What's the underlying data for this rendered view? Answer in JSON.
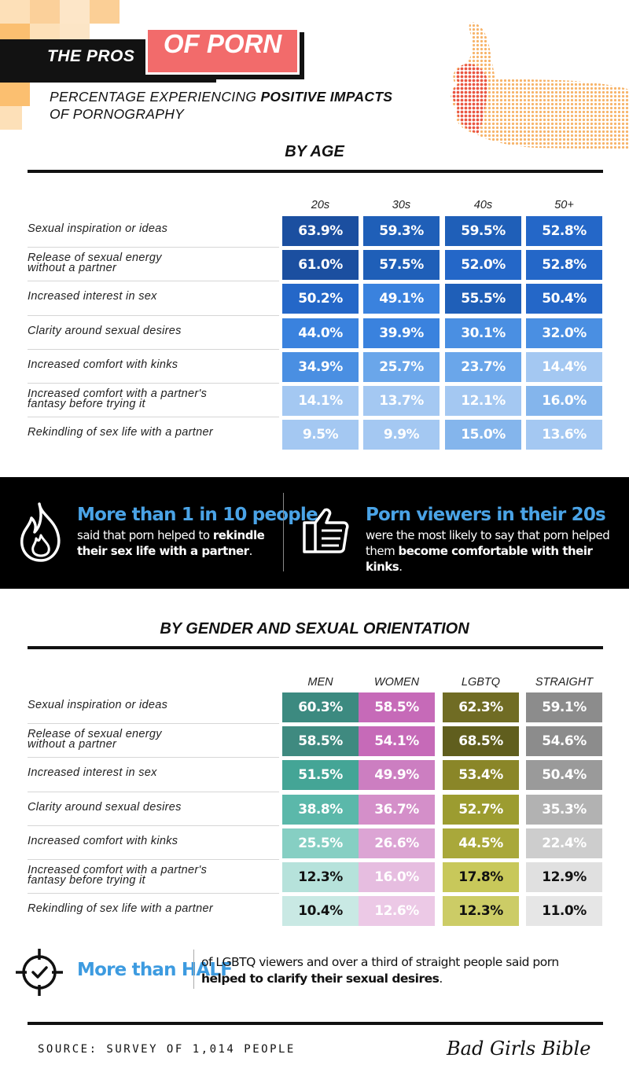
{
  "header": {
    "title_part1": "THE PROS",
    "title_part2": "OF PORN",
    "subtitle_line1_plain": "PERCENTAGE EXPERIENCING ",
    "subtitle_line1_bold": "POSITIVE IMPACTS",
    "subtitle_line2": "OF PORNOGRAPHY"
  },
  "row_labels": [
    [
      "Sexual inspiration or ideas"
    ],
    [
      "Release of sexual energy",
      "without a partner"
    ],
    [
      "Increased interest in sex"
    ],
    [
      "Clarity around sexual desires"
    ],
    [
      "Increased comfort with kinks"
    ],
    [
      "Increased comfort with a partner's",
      "fantasy before trying it"
    ],
    [
      "Rekindling of sex life with a partner"
    ]
  ],
  "chart_data": [
    {
      "type": "table",
      "title": "BY AGE",
      "categories": [
        "Sexual inspiration or ideas",
        "Release of sexual energy without a partner",
        "Increased interest in sex",
        "Clarity around sexual desires",
        "Increased comfort with kinks",
        "Increased comfort with a partner's fantasy before trying it",
        "Rekindling of sex life with a partner"
      ],
      "series": [
        {
          "name": "20s",
          "values": [
            63.9,
            61.0,
            50.2,
            44.0,
            34.9,
            14.1,
            9.5
          ],
          "labels": [
            "63.9%",
            "61.0%",
            "50.2%",
            "44.0%",
            "34.9%",
            "14.1%",
            "9.5%"
          ]
        },
        {
          "name": "30s",
          "values": [
            59.3,
            57.5,
            49.1,
            39.9,
            25.7,
            13.7,
            9.9
          ],
          "labels": [
            "59.3%",
            "57.5%",
            "49.1%",
            "39.9%",
            "25.7%",
            "13.7%",
            "9.9%"
          ]
        },
        {
          "name": "40s",
          "values": [
            59.5,
            52.0,
            55.5,
            30.1,
            23.7,
            12.1,
            15.0
          ],
          "labels": [
            "59.5%",
            "52.0%",
            "55.5%",
            "30.1%",
            "23.7%",
            "12.1%",
            "15.0%"
          ]
        },
        {
          "name": "50+",
          "values": [
            52.8,
            52.8,
            50.4,
            32.0,
            14.4,
            16.0,
            13.6
          ],
          "labels": [
            "52.8%",
            "52.8%",
            "50.4%",
            "32.0%",
            "14.4%",
            "16.0%",
            "13.6%"
          ]
        }
      ]
    },
    {
      "type": "table",
      "title": "BY GENDER AND SEXUAL ORIENTATION",
      "categories": [
        "Sexual inspiration or ideas",
        "Release of sexual energy without a partner",
        "Increased interest in sex",
        "Clarity around sexual desires",
        "Increased comfort with kinks",
        "Increased comfort with a partner's fantasy before trying it",
        "Rekindling of sex life with a partner"
      ],
      "series": [
        {
          "name": "MEN",
          "values": [
            60.3,
            58.5,
            51.5,
            38.8,
            25.5,
            12.3,
            10.4
          ],
          "labels": [
            "60.3%",
            "58.5%",
            "51.5%",
            "38.8%",
            "25.5%",
            "12.3%",
            "10.4%"
          ]
        },
        {
          "name": "WOMEN",
          "values": [
            58.5,
            54.1,
            49.9,
            36.7,
            26.6,
            16.0,
            12.6
          ],
          "labels": [
            "58.5%",
            "54.1%",
            "49.9%",
            "36.7%",
            "26.6%",
            "16.0%",
            "12.6%"
          ]
        },
        {
          "name": "LGBTQ",
          "values": [
            62.3,
            68.5,
            53.4,
            52.7,
            44.5,
            17.8,
            12.3
          ],
          "labels": [
            "62.3%",
            "68.5%",
            "53.4%",
            "52.7%",
            "44.5%",
            "17.8%",
            "12.3%"
          ]
        },
        {
          "name": "STRAIGHT",
          "values": [
            59.1,
            54.6,
            50.4,
            35.3,
            22.4,
            12.9,
            11.0
          ],
          "labels": [
            "59.1%",
            "54.6%",
            "50.4%",
            "35.3%",
            "22.4%",
            "12.9%",
            "11.0%"
          ]
        }
      ]
    }
  ],
  "colors": {
    "age": [
      "#1b4fa0",
      "#1f5fc0",
      "#2673d8",
      "#3f86e0",
      "#5b9be6",
      "#84b5ec",
      "#a4c8f2"
    ],
    "men": [
      "#3c8a80",
      "#3f8a80",
      "#44a596",
      "#5bb8aa",
      "#86cfc3",
      "#b6e2db",
      "#c9e9e4"
    ],
    "women": [
      "#c66ab8",
      "#c66ab8",
      "#cc7ec1",
      "#d48fc9",
      "#dca4d4",
      "#e6bde0",
      "#ecc9e6"
    ],
    "lgbtq": [
      "#706c24",
      "#605e1e",
      "#8a8628",
      "#9c9c30",
      "#a9a83a",
      "#c8c85a",
      "#cccc66"
    ],
    "straight": [
      "#8c8c8c",
      "#8c8c8c",
      "#9a9a9a",
      "#b2b2b2",
      "#cdcdcd",
      "#e0e0e0",
      "#e6e6e6"
    ],
    "accent_red": "#f26b6b",
    "accent_blue": "#4aa3e6"
  },
  "callouts": {
    "left": {
      "headline": "More than 1 in 10 people",
      "line1_plain": "said that porn helped to ",
      "line1_bold": "rekindle",
      "line2_bold": "their sex life with a partner",
      "line2_end": "."
    },
    "right": {
      "headline": "Porn viewers in their 20s",
      "line1": "were the most likely to say that porn helped",
      "line2_plain": "them ",
      "line2_bold": "become comfortable with their kinks",
      "line2_end": "."
    },
    "half": {
      "headline": "More than HALF",
      "text_plain": "of LGBTQ viewers and over a third of straight people said porn ",
      "text_bold": "helped to clarify their sexual desires",
      "text_end": "."
    }
  },
  "footer": {
    "source": "SOURCE: SURVEY OF 1,014 PEOPLE",
    "logo": "Bad Girls Bible"
  },
  "icons": [
    "fire-icon",
    "thumbs-up-icon",
    "target-check-icon",
    "thumbs-up-hand-illustration"
  ]
}
